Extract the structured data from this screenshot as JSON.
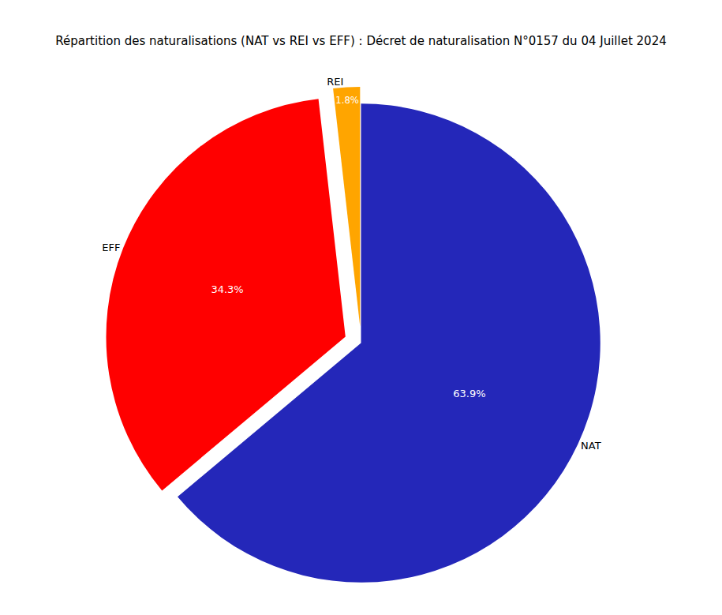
{
  "chart_data": {
    "type": "pie",
    "title": "Répartition des naturalisations (NAT vs REI vs EFF) : Décret de naturalisation N°0157 du 04 Juillet 2024",
    "categories": [
      "NAT",
      "REI",
      "EFF"
    ],
    "values": [
      63.9,
      1.8,
      34.3
    ],
    "value_labels": [
      "63.9%",
      "1.8%",
      "34.3%"
    ],
    "colors": [
      "#2427b9",
      "#ffa500",
      "#ff0000"
    ],
    "data_labels": true
  }
}
